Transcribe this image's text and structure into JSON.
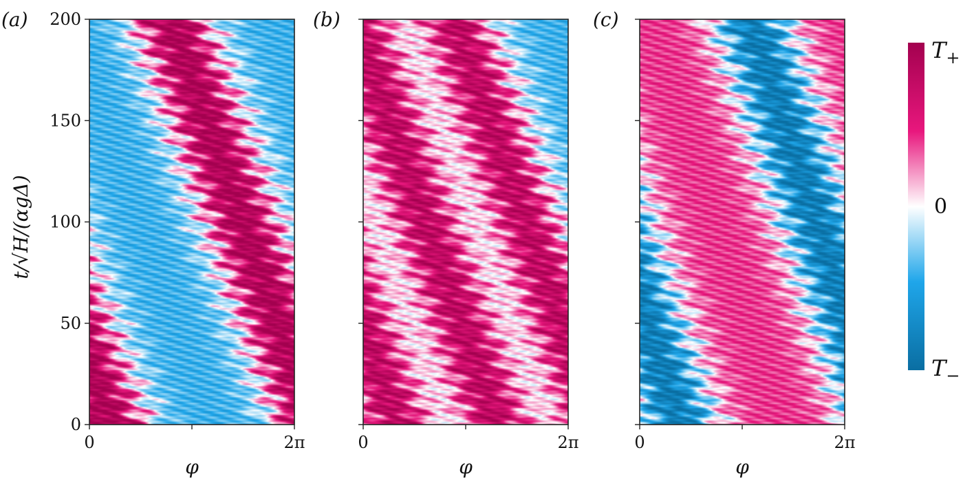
{
  "chart_data": [
    {
      "type": "heatmap",
      "panel_label": "(a)",
      "xlabel": "φ",
      "ylabel": "t/√H/(αgΔ)",
      "x_tick_labels": [
        "0",
        "2π"
      ],
      "y_tick_labels": [
        "0",
        "50",
        "100",
        "150",
        "200"
      ],
      "xlim": [
        0,
        6.283
      ],
      "ylim": [
        0,
        200
      ],
      "bands": [
        {
          "sign": "positive",
          "phase_at_t0": 0.6,
          "phase_at_t200": -3.8,
          "strength": 0.9
        },
        {
          "sign": "positive",
          "phase_at_t0": 6.9,
          "phase_at_t200": 2.5,
          "strength": 0.9
        }
      ]
    },
    {
      "type": "heatmap",
      "panel_label": "(b)",
      "xlabel": "φ",
      "x_tick_labels": [
        "0",
        "2π"
      ],
      "xlim": [
        0,
        6.283
      ],
      "ylim": [
        0,
        200
      ],
      "bands": [
        {
          "sign": "positive",
          "phase_at_t0": 1.0,
          "phase_at_t200": -3.4,
          "strength": 0.8
        },
        {
          "sign": "positive",
          "phase_at_t0": 4.1,
          "phase_at_t200": -0.3,
          "strength": 0.8
        },
        {
          "sign": "positive",
          "phase_at_t0": 7.2,
          "phase_at_t200": 2.8,
          "strength": 0.8
        }
      ]
    },
    {
      "type": "heatmap",
      "panel_label": "(c)",
      "xlabel": "φ",
      "x_tick_labels": [
        "0",
        "2π"
      ],
      "xlim": [
        0,
        6.283
      ],
      "ylim": [
        0,
        200
      ],
      "bands": [
        {
          "sign": "negative",
          "phase_at_t0": 1.2,
          "phase_at_t200": -2.8,
          "strength": 0.85
        },
        {
          "sign": "negative",
          "phase_at_t0": 7.5,
          "phase_at_t200": 3.4,
          "strength": 0.85
        }
      ]
    }
  ],
  "colorbar": {
    "top_label": "T",
    "top_label_sub": "+",
    "mid_label": "0",
    "bottom_label": "T",
    "bottom_label_sub": "−",
    "colors": {
      "top": "#a3014f",
      "upper": "#e8177d",
      "mid": "#ffffff",
      "lower": "#1fa6ea",
      "bottom": "#0a6ea2"
    }
  }
}
